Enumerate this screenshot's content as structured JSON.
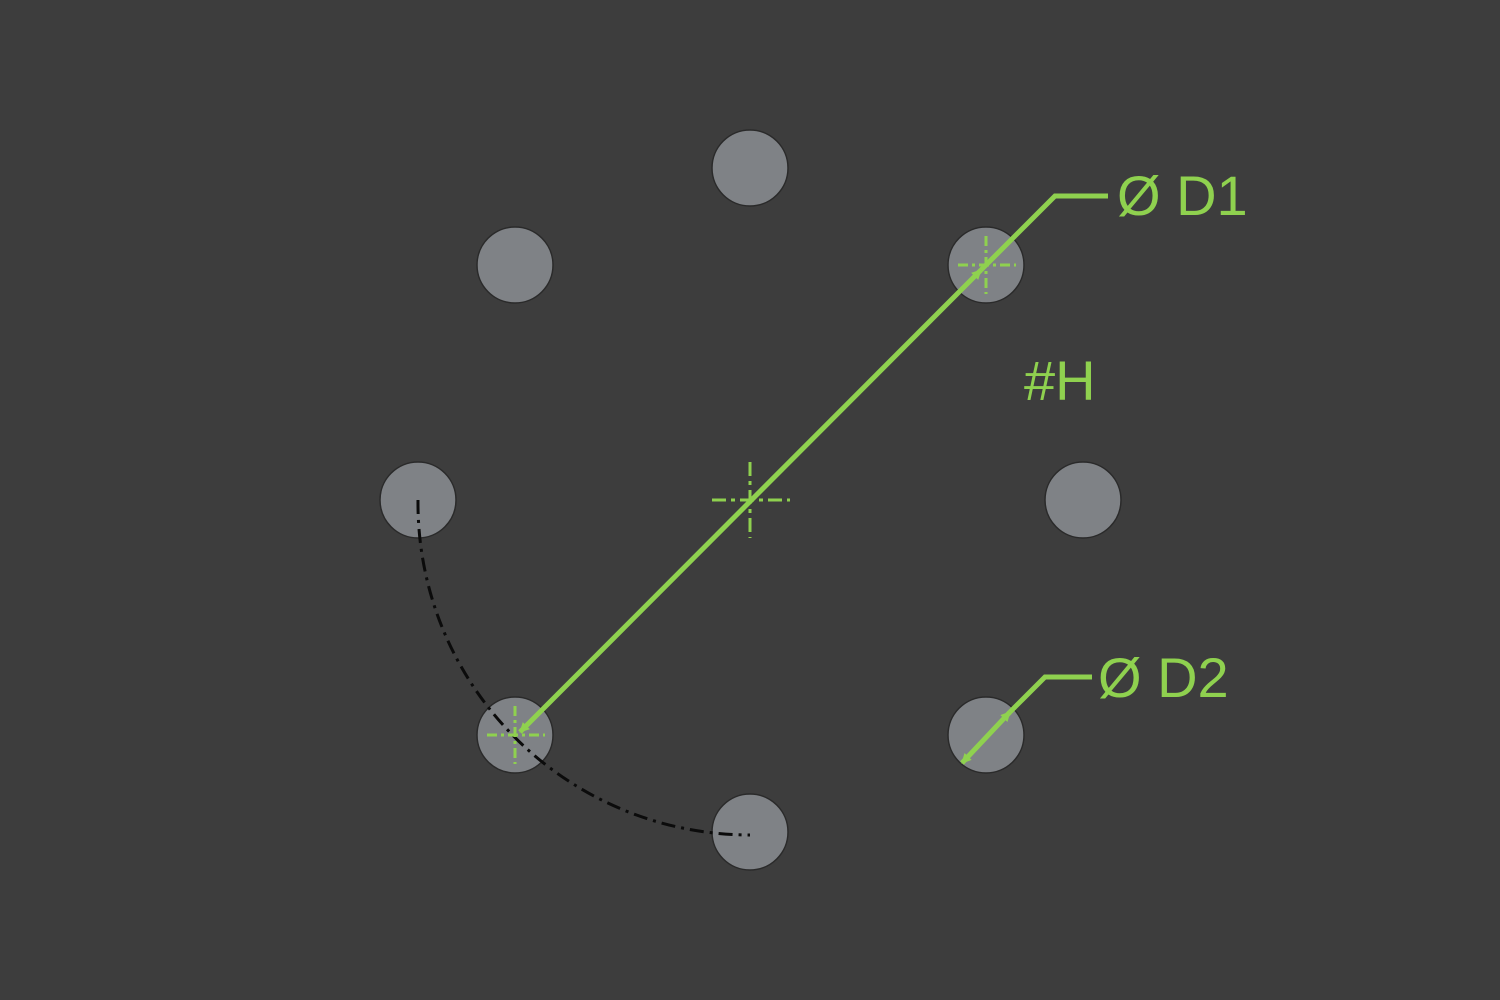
{
  "colors": {
    "background": "#3d3d3d",
    "hole_fill": "#7f8286",
    "hole_stroke": "#2a2a2a",
    "dimension": "#8fd14f",
    "construction_line": "#0b0b0b"
  },
  "pattern": {
    "hole_count": 8
  },
  "labels": {
    "bolt_circle_diameter": "Ø D1",
    "hole_count": "#H",
    "hole_diameter": "Ø D2"
  }
}
